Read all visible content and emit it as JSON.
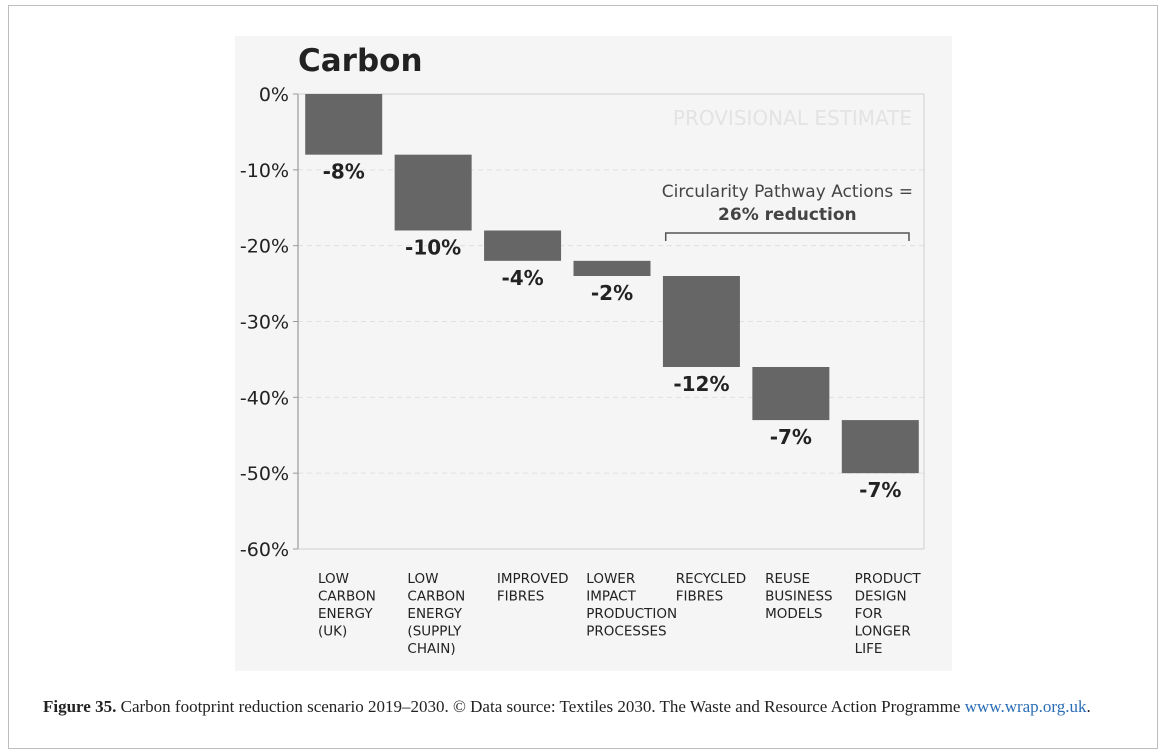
{
  "chart_data": {
    "type": "bar",
    "subtype": "waterfall",
    "title": "Carbon",
    "watermark": "PROVISIONAL ESTIMATE",
    "ylim": [
      -60,
      0
    ],
    "yticks": [
      0,
      -10,
      -20,
      -30,
      -40,
      -50,
      -60
    ],
    "ytick_labels": [
      "0%",
      "-10%",
      "-20%",
      "-30%",
      "-40%",
      "-50%",
      "-60%"
    ],
    "grid": "horizontal dashed",
    "categories": [
      [
        "LOW",
        "CARBON",
        "ENERGY",
        "(UK)"
      ],
      [
        "LOW",
        "CARBON",
        "ENERGY",
        "(SUPPLY",
        "CHAIN)"
      ],
      [
        "IMPROVED",
        "FIBRES"
      ],
      [
        "LOWER",
        "IMPACT",
        "PRODUCTION",
        "PROCESSES"
      ],
      [
        "RECYCLED",
        "FIBRES"
      ],
      [
        "REUSE",
        "BUSINESS",
        "MODELS"
      ],
      [
        "PRODUCT",
        "DESIGN",
        "FOR",
        "LONGER",
        "LIFE"
      ]
    ],
    "values": [
      -8,
      -10,
      -4,
      -2,
      -12,
      -7,
      -7
    ],
    "data_labels": [
      "-8%",
      "-10%",
      "-4%",
      "-2%",
      "-12%",
      "-7%",
      "-7%"
    ],
    "annotation": {
      "line1": "Circularity Pathway Actions =",
      "line2": "26% reduction",
      "spans_categories": [
        4,
        6
      ]
    },
    "bar_color": "#666666"
  },
  "caption": {
    "label": "Figure 35.",
    "text": " Carbon footprint reduction scenario 2019–2030. © Data source: Textiles 2030. The Waste and Resource Action Programme ",
    "link": "www.wrap.org.uk",
    "suffix": "."
  }
}
